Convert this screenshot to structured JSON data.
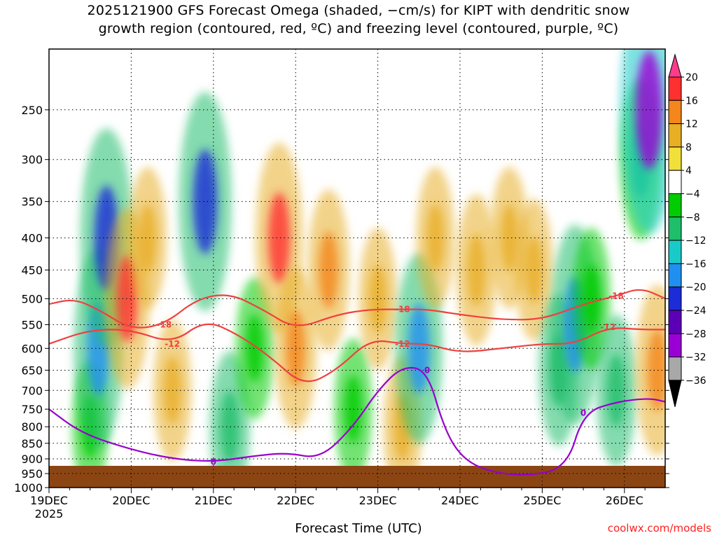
{
  "chart_data": {
    "type": "heatmap",
    "title": "2025121900 GFS Forecast Omega (shaded, −cm/s) for KIPT with dendritic snow",
    "subtitle": "growth region (contoured, red, ºC) and freezing level (contoured, purple, ºC)",
    "xlabel": "Forecast Time (UTC)",
    "ylabel": "",
    "x_ticks": [
      "19DEC",
      "20DEC",
      "21DEC",
      "22DEC",
      "23DEC",
      "24DEC",
      "25DEC",
      "26DEC"
    ],
    "x_year_label": "2025",
    "y_ticks": [
      250,
      300,
      350,
      400,
      450,
      500,
      550,
      600,
      650,
      700,
      750,
      800,
      850,
      900,
      950,
      1000
    ],
    "ylim": [
      200,
      1000
    ],
    "y_scale": "log-pressure",
    "y_reversed": true,
    "grid": true,
    "colorbar": {
      "labels": [
        "20",
        "16",
        "12",
        "8",
        "4",
        "−4",
        "−8",
        "−12",
        "−16",
        "−20",
        "−24",
        "−28",
        "−32",
        "−36"
      ],
      "colors": [
        "#ff3b8c",
        "#ff3030",
        "#f4861c",
        "#e8ae24",
        "#f1e03a",
        "#ffffff",
        "#00cc00",
        "#1fbe6b",
        "#19cbc8",
        "#2090f0",
        "#1c2cd6",
        "#5c00b8",
        "#9a00d6",
        "#a8a8a8",
        "#000000"
      ]
    },
    "series": [
      {
        "values": [
          [
            19.5,
            800,
            -4
          ],
          [
            19.6,
            600,
            -18
          ],
          [
            19.7,
            400,
            -22
          ],
          [
            19.95,
            500,
            14
          ],
          [
            20.2,
            400,
            6
          ],
          [
            20.5,
            700,
            6
          ],
          [
            20.9,
            350,
            -22
          ],
          [
            21.2,
            800,
            -8
          ],
          [
            21.5,
            600,
            -6
          ],
          [
            21.8,
            400,
            16
          ],
          [
            22.0,
            600,
            10
          ],
          [
            22.4,
            450,
            10
          ],
          [
            22.7,
            750,
            -6
          ],
          [
            23.0,
            500,
            6
          ],
          [
            23.3,
            800,
            6
          ],
          [
            23.5,
            600,
            -16
          ],
          [
            23.7,
            400,
            6
          ],
          [
            24.2,
            450,
            8
          ],
          [
            24.6,
            400,
            6
          ],
          [
            24.9,
            450,
            6
          ],
          [
            25.2,
            650,
            -8
          ],
          [
            25.4,
            550,
            -18
          ],
          [
            25.6,
            500,
            -6
          ],
          [
            25.9,
            700,
            -8
          ],
          [
            26.2,
            300,
            -10
          ],
          [
            26.3,
            250,
            -28
          ],
          [
            26.4,
            650,
            12
          ]
        ]
      },
      {
        "name": "-12",
        "values": [
          [
            19.0,
            590
          ],
          [
            19.5,
            560
          ],
          [
            20.0,
            560
          ],
          [
            20.5,
            590
          ],
          [
            20.9,
            540
          ],
          [
            21.3,
            570
          ],
          [
            21.7,
            620
          ],
          [
            22.1,
            690
          ],
          [
            22.5,
            650
          ],
          [
            22.9,
            580
          ],
          [
            23.3,
            590
          ],
          [
            23.6,
            590
          ],
          [
            24.0,
            610
          ],
          [
            24.5,
            600
          ],
          [
            25.0,
            590
          ],
          [
            25.4,
            590
          ],
          [
            25.8,
            555
          ],
          [
            26.2,
            560
          ],
          [
            26.5,
            560
          ]
        ]
      },
      {
        "name": "-18",
        "values": [
          [
            19.0,
            510
          ],
          [
            19.3,
            500
          ],
          [
            19.6,
            520
          ],
          [
            20.0,
            560
          ],
          [
            20.4,
            550
          ],
          [
            20.8,
            500
          ],
          [
            21.2,
            490
          ],
          [
            21.6,
            520
          ],
          [
            22.0,
            560
          ],
          [
            22.5,
            530
          ],
          [
            22.9,
            520
          ],
          [
            23.3,
            520
          ],
          [
            23.6,
            520
          ],
          [
            24.0,
            530
          ],
          [
            24.5,
            540
          ],
          [
            25.0,
            540
          ],
          [
            25.5,
            510
          ],
          [
            25.9,
            495
          ],
          [
            26.2,
            480
          ],
          [
            26.5,
            500
          ]
        ]
      },
      {
        "name": "0",
        "values": [
          [
            19.0,
            750
          ],
          [
            19.4,
            820
          ],
          [
            20.0,
            870
          ],
          [
            20.5,
            900
          ],
          [
            21.0,
            910
          ],
          [
            21.5,
            890
          ],
          [
            21.9,
            880
          ],
          [
            22.3,
            900
          ],
          [
            22.7,
            800
          ],
          [
            23.0,
            700
          ],
          [
            23.3,
            640
          ],
          [
            23.6,
            650
          ],
          [
            23.8,
            800
          ],
          [
            24.0,
            890
          ],
          [
            24.3,
            940
          ],
          [
            24.8,
            960
          ],
          [
            25.3,
            930
          ],
          [
            25.5,
            760
          ],
          [
            25.9,
            730
          ],
          [
            26.3,
            720
          ],
          [
            26.5,
            730
          ]
        ]
      }
    ]
  },
  "credit": "coolwx.com/models"
}
